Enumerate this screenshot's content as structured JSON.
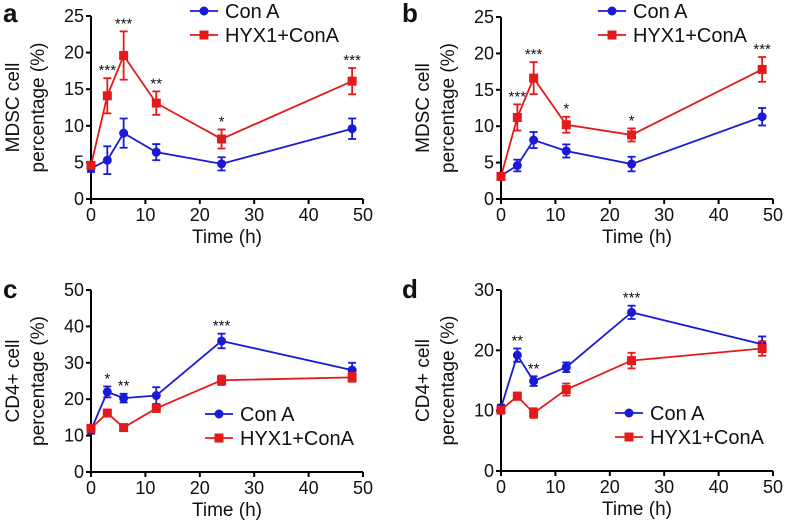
{
  "colors": {
    "con_a": "#1a1ad6",
    "hyx1_cona": "#e41a1a",
    "axis": "#000000"
  },
  "chart_data": [
    {
      "panel": "a",
      "type": "line",
      "xlabel": "Time (h)",
      "ylabel_lines": [
        "MDSC cell",
        "percentage (%)"
      ],
      "xlim": [
        0,
        50
      ],
      "ylim": [
        0,
        25
      ],
      "xticks": [
        0,
        10,
        20,
        30,
        40,
        50
      ],
      "yticks": [
        0,
        5,
        10,
        15,
        20,
        25
      ],
      "legend": "top-right",
      "x": [
        0,
        3,
        6,
        12,
        24,
        48
      ],
      "series": [
        {
          "name": "Con A",
          "marker": "circle",
          "values": [
            4.2,
            5.3,
            9.0,
            6.4,
            4.8,
            9.6
          ],
          "errors": [
            0.5,
            1.9,
            2.0,
            1.1,
            0.9,
            1.4
          ]
        },
        {
          "name": "HYX1+ConA",
          "marker": "square",
          "values": [
            4.6,
            14.1,
            19.6,
            13.1,
            8.2,
            16.1
          ],
          "errors": [
            0.3,
            2.4,
            3.3,
            1.6,
            1.3,
            1.8
          ]
        }
      ],
      "significance": [
        {
          "x": 3,
          "label": "***"
        },
        {
          "x": 6,
          "label": "***"
        },
        {
          "x": 12,
          "label": "**"
        },
        {
          "x": 24,
          "label": "*"
        },
        {
          "x": 48,
          "label": "***"
        }
      ]
    },
    {
      "panel": "b",
      "type": "line",
      "xlabel": "Time (h)",
      "ylabel_lines": [
        "MDSC cell",
        "percentage (%)"
      ],
      "xlim": [
        0,
        50
      ],
      "ylim": [
        0,
        25
      ],
      "xticks": [
        0,
        10,
        20,
        30,
        40,
        50
      ],
      "yticks": [
        0,
        5,
        10,
        15,
        20,
        25
      ],
      "legend": "top-right",
      "x": [
        0,
        3,
        6,
        12,
        24,
        48
      ],
      "series": [
        {
          "name": "Con A",
          "marker": "circle",
          "values": [
            3.2,
            4.6,
            8.1,
            6.6,
            4.8,
            11.3
          ],
          "errors": [
            0.3,
            0.8,
            1.1,
            0.9,
            1.0,
            1.2
          ]
        },
        {
          "name": "HYX1+ConA",
          "marker": "square",
          "values": [
            3.1,
            11.2,
            16.6,
            10.2,
            8.8,
            17.8
          ],
          "errors": [
            0.3,
            1.8,
            2.2,
            1.1,
            0.9,
            1.7
          ]
        }
      ],
      "significance": [
        {
          "x": 3,
          "label": "***"
        },
        {
          "x": 6,
          "label": "***"
        },
        {
          "x": 12,
          "label": "*"
        },
        {
          "x": 24,
          "label": "*"
        },
        {
          "x": 48,
          "label": "***"
        }
      ]
    },
    {
      "panel": "c",
      "type": "line",
      "xlabel": "Time (h)",
      "ylabel_lines": [
        "CD4+ cell",
        "percentage (%)"
      ],
      "xlim": [
        0,
        50
      ],
      "ylim": [
        0,
        50
      ],
      "xticks": [
        0,
        10,
        20,
        30,
        40,
        50
      ],
      "yticks": [
        0,
        10,
        20,
        30,
        40,
        50
      ],
      "legend": "bottom-right",
      "x": [
        0,
        3,
        6,
        12,
        24,
        48
      ],
      "series": [
        {
          "name": "Con A",
          "marker": "circle",
          "values": [
            11.5,
            22.0,
            20.3,
            21.0,
            36.0,
            28.0
          ],
          "errors": [
            1.0,
            1.5,
            1.2,
            2.3,
            2.0,
            2.0
          ]
        },
        {
          "name": "HYX1+ConA",
          "marker": "square",
          "values": [
            12.0,
            16.2,
            12.2,
            17.5,
            25.2,
            26.0
          ],
          "errors": [
            0.6,
            0.8,
            0.8,
            1.0,
            1.3,
            1.2
          ]
        }
      ],
      "significance": [
        {
          "x": 3,
          "label": "*"
        },
        {
          "x": 6,
          "label": "**"
        },
        {
          "x": 24,
          "label": "***"
        }
      ]
    },
    {
      "panel": "d",
      "type": "line",
      "xlabel": "Time (h)",
      "ylabel_lines": [
        "CD4+ cell",
        "percentage (%)"
      ],
      "xlim": [
        0,
        50
      ],
      "ylim": [
        0,
        30
      ],
      "xticks": [
        0,
        10,
        20,
        30,
        40,
        50
      ],
      "yticks": [
        0,
        10,
        20,
        30
      ],
      "legend": "bottom-right",
      "x": [
        0,
        3,
        6,
        12,
        24,
        48
      ],
      "series": [
        {
          "name": "Con A",
          "marker": "circle",
          "values": [
            10.5,
            19.2,
            14.9,
            17.2,
            26.3,
            21.0
          ],
          "errors": [
            0.5,
            1.1,
            0.8,
            0.8,
            1.1,
            1.3
          ]
        },
        {
          "name": "HYX1+ConA",
          "marker": "square",
          "values": [
            10.1,
            12.4,
            9.6,
            13.5,
            18.3,
            20.3
          ],
          "errors": [
            0.5,
            0.6,
            0.8,
            1.0,
            1.3,
            1.2
          ]
        }
      ],
      "significance": [
        {
          "x": 3,
          "label": "**"
        },
        {
          "x": 6,
          "label": "**"
        },
        {
          "x": 24,
          "label": "***"
        }
      ]
    }
  ]
}
